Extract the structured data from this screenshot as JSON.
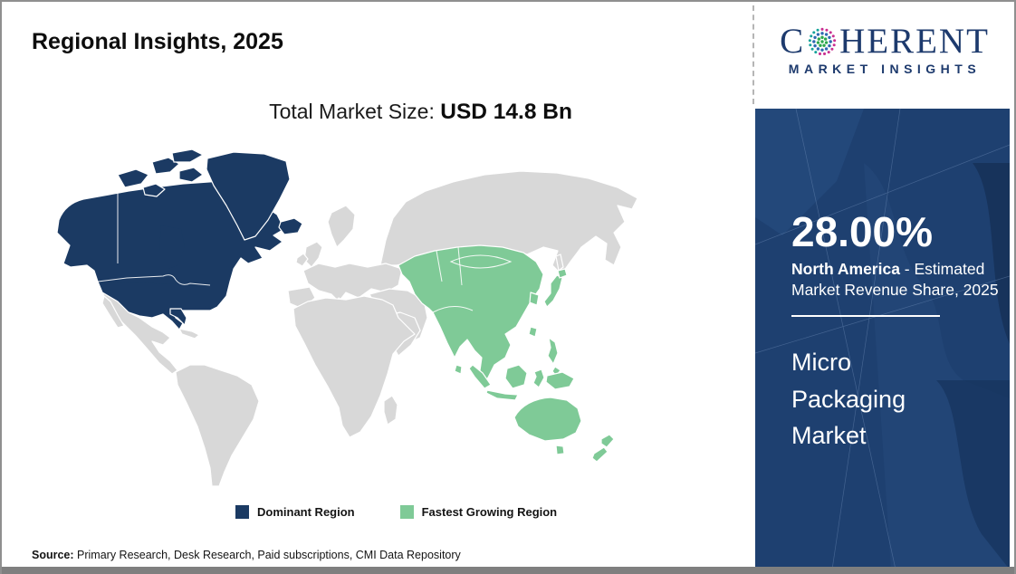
{
  "header": {
    "title": "Regional Insights, 2025"
  },
  "logo": {
    "part1": "C",
    "part2": "HERENT",
    "subtitle": "MARKET INSIGHTS",
    "globe_colors": {
      "green": "#2ca84d",
      "blue": "#2e6ab1",
      "pink": "#c92f91",
      "teal": "#16a39a"
    }
  },
  "market": {
    "total_label": "Total Market Size: ",
    "total_value": "USD 14.8 Bn"
  },
  "map": {
    "regions": [
      {
        "name": "North America",
        "role": "dominant"
      },
      {
        "name": "Asia Pacific",
        "role": "fastest_growing"
      },
      {
        "name": "Rest of World",
        "role": "other"
      }
    ]
  },
  "legend": {
    "items": [
      {
        "label": "Dominant Region",
        "color": "#1b3a63"
      },
      {
        "label": "Fastest Growing Region",
        "color": "#7fca97"
      }
    ]
  },
  "sidebar": {
    "share_value": "28.00%",
    "share_region": "North America",
    "share_desc": " - Estimated Market Revenue Share, 2025",
    "market_name": "Micro Packaging Market"
  },
  "source": {
    "label": "Source:",
    "text": " Primary Research, Desk Research, Paid subscriptions, CMI Data Repository"
  },
  "theme": {
    "dominant": "#1b3a63",
    "growing": "#7fca97",
    "other": "#d8d8d8",
    "sidebar_bg": "#1e4070",
    "brand_navy": "#1d3a6d",
    "bottom_bar": "#7f7f7f"
  }
}
